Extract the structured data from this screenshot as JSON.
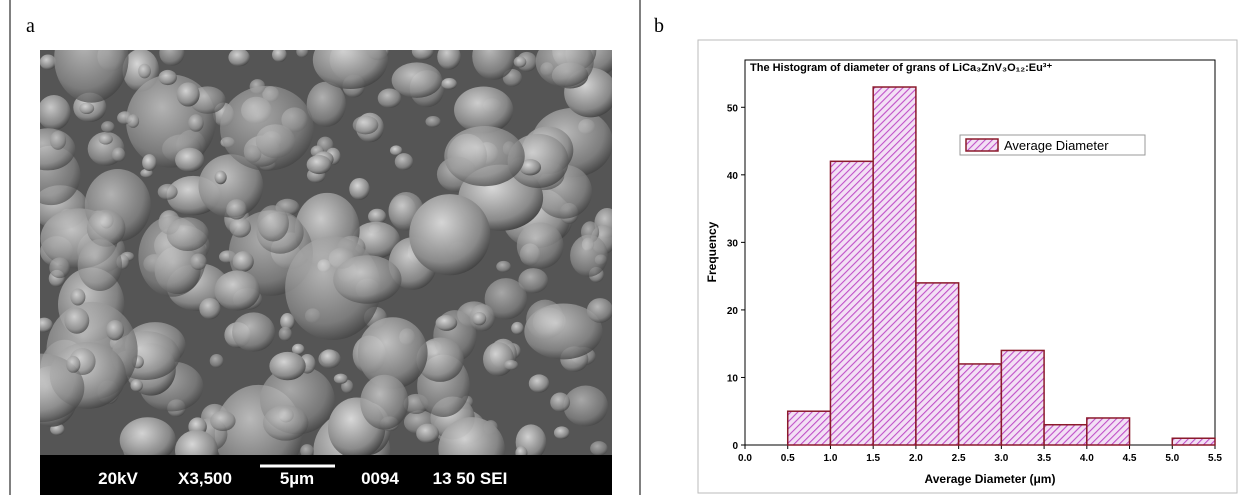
{
  "panel_labels": [
    "a",
    "b"
  ],
  "sem_image": {
    "info": [
      "20kV",
      "X3,500",
      "5µm",
      "0094",
      "13 50 SEI"
    ]
  },
  "chart_data": {
    "type": "histogram",
    "title": "The Histogram of diameter of grans of LiCa₃ZnV₃O₁₂:Eu³⁺",
    "x_label": "Average Diameter (μm)",
    "y_label": "Frequency",
    "bins": [
      0.5,
      1.0,
      1.5,
      2.0,
      2.5,
      3.0,
      3.5,
      4.0,
      4.5,
      5.0,
      5.5
    ],
    "series": [
      {
        "name": "Average Diameter",
        "color": "#8b1a2b",
        "values": [
          5,
          42,
          53,
          24,
          12,
          14,
          3,
          4,
          0,
          1
        ]
      }
    ],
    "xlim": [
      0,
      5.5
    ],
    "xticks": [
      {
        "value": 0,
        "label": "0.0"
      },
      0.5,
      {
        "value": 1,
        "label": "1.0"
      },
      1.5,
      {
        "value": 2,
        "label": "2.0"
      },
      2.5,
      {
        "value": 3,
        "label": "3.0"
      },
      3.5,
      {
        "value": 4,
        "label": "4.0"
      },
      4.5,
      {
        "value": 5,
        "label": "5.0"
      },
      5.5
    ],
    "ylim": [
      0,
      57
    ],
    "yticks": [
      0,
      10,
      20,
      30,
      40,
      50
    ],
    "legend": "upper right"
  }
}
